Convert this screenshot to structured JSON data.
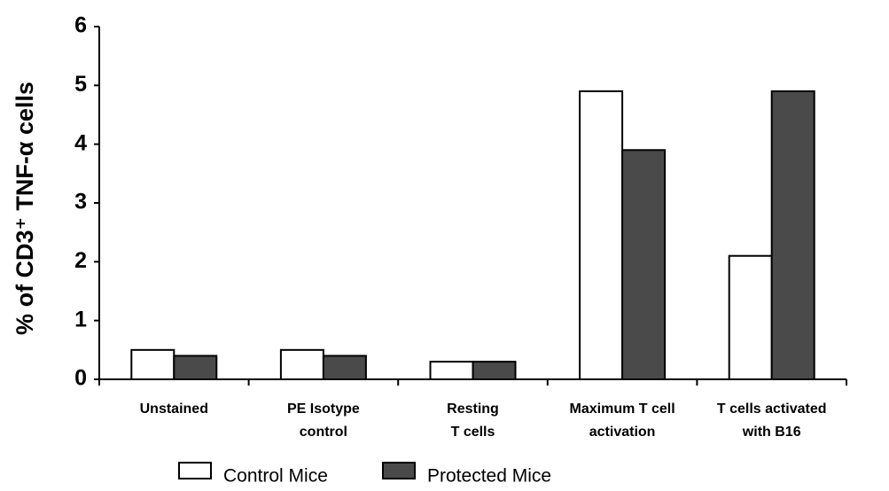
{
  "chart_data": {
    "type": "bar",
    "y_label": "% of CD3⁺ TNF-α cells",
    "categories": [
      [
        "Unstained"
      ],
      [
        "PE Isotype",
        "control"
      ],
      [
        "Resting",
        "T cells"
      ],
      [
        "Maximum T cell",
        "activation"
      ],
      [
        "T cells activated",
        "with B16"
      ]
    ],
    "series": [
      {
        "name": "Control Mice",
        "color": "#ffffff",
        "values": [
          0.5,
          0.5,
          0.3,
          4.9,
          2.1
        ]
      },
      {
        "name": "Protected Mice",
        "color": "#4a4a4a",
        "values": [
          0.4,
          0.4,
          0.3,
          3.9,
          4.9
        ]
      }
    ],
    "ylim": [
      0,
      6
    ],
    "yticks": [
      0,
      1,
      2,
      3,
      4,
      5,
      6
    ],
    "grid": false,
    "legend": "bottom"
  }
}
